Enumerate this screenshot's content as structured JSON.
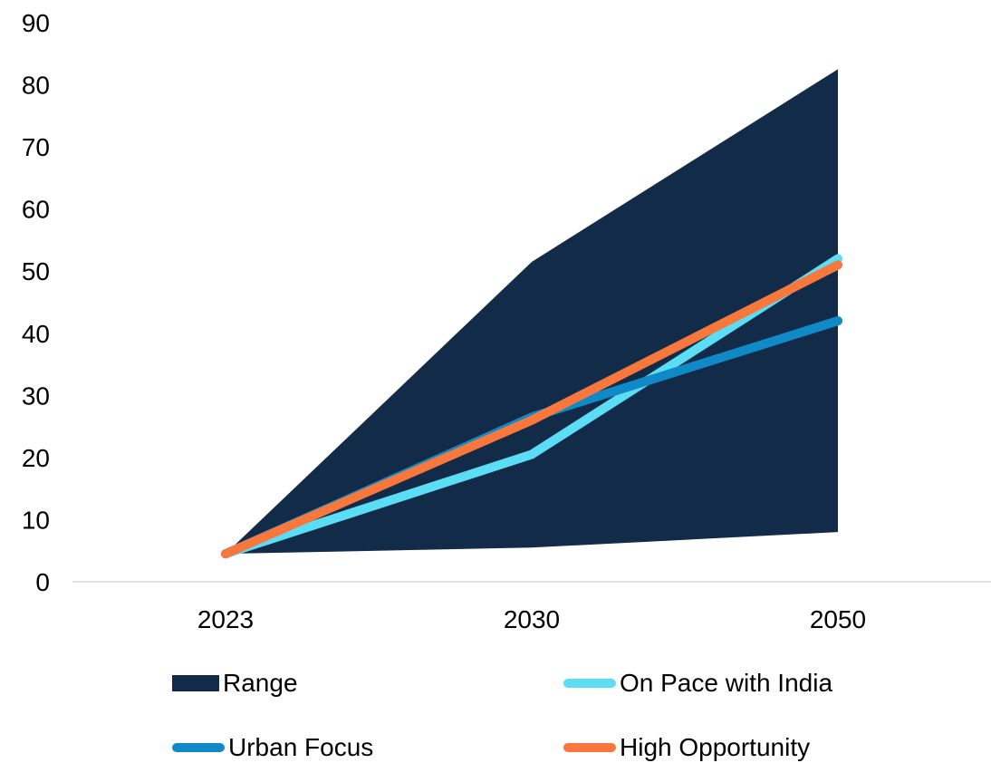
{
  "chart_data": {
    "type": "area",
    "categories": [
      "2023",
      "2030",
      "2050"
    ],
    "ylim": [
      0,
      90
    ],
    "yticks": [
      0,
      10,
      20,
      30,
      40,
      50,
      60,
      70,
      80,
      90
    ],
    "grid": false,
    "legend_position": "bottom",
    "range": {
      "name": "Range",
      "low": [
        4.5,
        5.5,
        8
      ],
      "high": [
        4.5,
        51.5,
        82.5
      ],
      "color": "#122B49"
    },
    "series": [
      {
        "name": "On Pace with India",
        "values": [
          4.5,
          20.5,
          52
        ],
        "color": "#5BDDF5"
      },
      {
        "name": "Urban Focus",
        "values": [
          4.5,
          26.5,
          42
        ],
        "color": "#0F8AC7"
      },
      {
        "name": "High Opportunity",
        "values": [
          4.5,
          26,
          51
        ],
        "color": "#F7773D"
      }
    ]
  }
}
